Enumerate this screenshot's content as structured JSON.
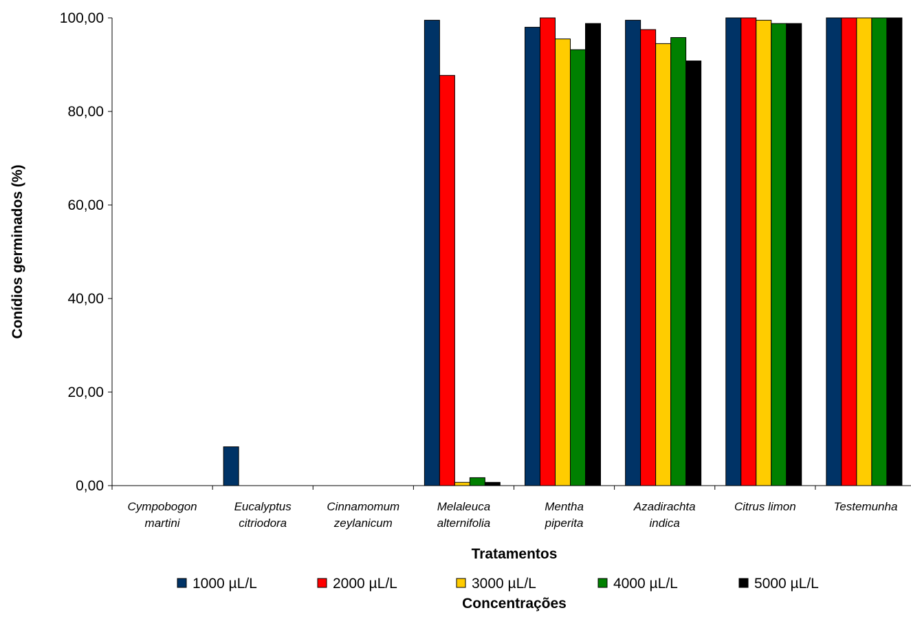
{
  "chart_data": {
    "type": "bar",
    "categories": [
      [
        "Cympobogon",
        "martini"
      ],
      [
        "Eucalyptus",
        "citriodora"
      ],
      [
        "Cinnamomum",
        "zeylanicum"
      ],
      [
        "Melaleuca",
        "alternifolia"
      ],
      [
        "Mentha",
        "piperita"
      ],
      [
        "Azadirachta",
        "indica"
      ],
      [
        "Citrus limon"
      ],
      [
        "Testemunha"
      ]
    ],
    "series": [
      {
        "name": "1000 µL/L",
        "color": "#003366",
        "values": [
          0,
          8.3,
          0,
          99.5,
          98.0,
          99.5,
          100,
          100
        ]
      },
      {
        "name": "2000 µL/L",
        "color": "#ff0000",
        "values": [
          0,
          0,
          0,
          87.7,
          100,
          97.5,
          100,
          100
        ]
      },
      {
        "name": "3000 µL/L",
        "color": "#ffcc00",
        "values": [
          0,
          0,
          0,
          0.7,
          95.5,
          94.5,
          99.5,
          100
        ]
      },
      {
        "name": "4000 µL/L",
        "color": "#008000",
        "values": [
          0,
          0,
          0,
          1.7,
          93.2,
          95.8,
          98.8,
          100
        ]
      },
      {
        "name": "5000 µL/L",
        "color": "#000000",
        "values": [
          0,
          0,
          0,
          0.7,
          98.8,
          90.8,
          98.8,
          100
        ]
      }
    ],
    "ylim": [
      0,
      100
    ],
    "yticks": [
      "0,00",
      "20,00",
      "40,00",
      "60,00",
      "80,00",
      "100,00"
    ],
    "ylabel": "Conídios germinados (%)",
    "xlabel": "Tratamentos",
    "legend_title": "Concentrações",
    "legend_position": "bottom",
    "grid": false
  }
}
